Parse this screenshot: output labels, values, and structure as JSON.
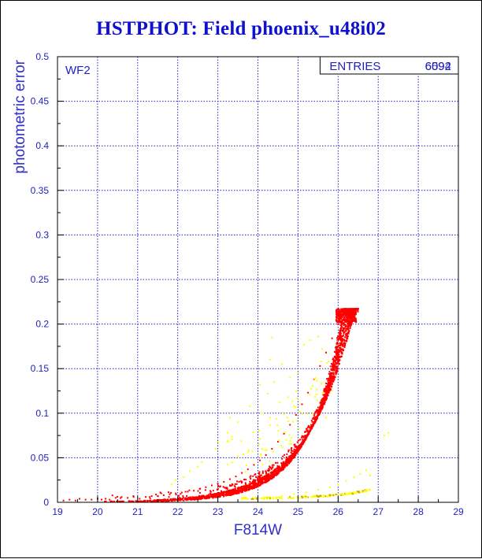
{
  "title": "HSTPHOT: Field phoenix_u48i02",
  "chart_data": {
    "type": "scatter",
    "title": "HSTPHOT: Field phoenix_u48i02",
    "xlabel": "F814W",
    "ylabel": "photometric error",
    "xlim": [
      19,
      29
    ],
    "ylim": [
      0,
      0.5
    ],
    "xticks": [
      "19",
      "20",
      "21",
      "22",
      "23",
      "24",
      "25",
      "26",
      "27",
      "28",
      "29"
    ],
    "yticks": [
      "0",
      "0.05",
      "0.1",
      "0.15",
      "0.2",
      "0.25",
      "0.3",
      "0.35",
      "0.4",
      "0.45",
      "0.5"
    ],
    "grid": true,
    "panel_label": "WF2",
    "stats_box": {
      "label": "ENTRIES",
      "values": [
        "6092",
        "6594"
      ]
    },
    "colors": {
      "frame": "#000000",
      "grid": "#2020c8",
      "text": "#2020c0",
      "title": "#1010d0",
      "main_points": "#ff0000",
      "secondary_points": "#ffff00",
      "secondary_points_dark": "#d0a000"
    },
    "series": [
      {
        "marker_color": "#ff0000",
        "envelope": {
          "description_units": "upper edge y = a*exp((x-x0)/s)",
          "x_start": 19.2,
          "x_end": 26.5,
          "upper_a": 0.0195,
          "upper_x0": 23.7,
          "upper_s": 1.13,
          "lower_a": 0.0125,
          "lower_x0": 23.7,
          "lower_s": 0.86,
          "max_error": 0.217
        },
        "points": [
          [
            19.15,
            0.002
          ],
          [
            19.3,
            0.003
          ],
          [
            19.45,
            0.002
          ],
          [
            19.55,
            0.004
          ],
          [
            19.7,
            0.003
          ],
          [
            19.85,
            0.003
          ],
          [
            20.0,
            0.004
          ],
          [
            20.1,
            0.003
          ],
          [
            20.2,
            0.004
          ],
          [
            20.3,
            0.003
          ],
          [
            20.45,
            0.005
          ],
          [
            20.6,
            0.006
          ],
          [
            20.75,
            0.005
          ],
          [
            20.9,
            0.006
          ],
          [
            21.05,
            0.004
          ],
          [
            21.2,
            0.006
          ],
          [
            21.35,
            0.007
          ],
          [
            21.5,
            0.007
          ],
          [
            21.65,
            0.008
          ],
          [
            21.8,
            0.009
          ],
          [
            21.95,
            0.01
          ],
          [
            22.1,
            0.011
          ],
          [
            22.25,
            0.012
          ],
          [
            22.4,
            0.013
          ],
          [
            22.55,
            0.015
          ],
          [
            22.7,
            0.017
          ],
          [
            22.85,
            0.019
          ],
          [
            23.0,
            0.021
          ],
          [
            23.15,
            0.023
          ],
          [
            23.3,
            0.026
          ],
          [
            23.45,
            0.029
          ],
          [
            23.6,
            0.033
          ],
          [
            23.75,
            0.037
          ],
          [
            23.9,
            0.042
          ],
          [
            24.05,
            0.047
          ],
          [
            24.2,
            0.053
          ],
          [
            24.35,
            0.06
          ],
          [
            24.5,
            0.068
          ],
          [
            24.65,
            0.077
          ],
          [
            24.8,
            0.087
          ],
          [
            24.95,
            0.098
          ],
          [
            25.1,
            0.11
          ],
          [
            25.25,
            0.123
          ],
          [
            25.4,
            0.138
          ],
          [
            25.55,
            0.153
          ],
          [
            25.7,
            0.168
          ],
          [
            25.85,
            0.184
          ],
          [
            26.0,
            0.2
          ],
          [
            26.15,
            0.212
          ],
          [
            26.3,
            0.217
          ]
        ]
      },
      {
        "marker_color": "#ffff00",
        "points": [
          [
            24.35,
            0.185
          ],
          [
            25.15,
            0.177
          ],
          [
            25.3,
            0.182
          ],
          [
            25.5,
            0.186
          ],
          [
            25.6,
            0.172
          ],
          [
            24.3,
            0.16
          ],
          [
            24.6,
            0.155
          ],
          [
            25.0,
            0.145
          ],
          [
            24.8,
            0.14
          ],
          [
            24.4,
            0.135
          ],
          [
            24.05,
            0.132
          ],
          [
            24.25,
            0.122
          ],
          [
            24.75,
            0.118
          ],
          [
            24.55,
            0.112
          ],
          [
            24.9,
            0.108
          ],
          [
            23.8,
            0.108
          ],
          [
            24.1,
            0.1
          ],
          [
            24.3,
            0.095
          ],
          [
            23.5,
            0.09
          ],
          [
            23.25,
            0.078
          ],
          [
            23.3,
            0.095
          ],
          [
            23.0,
            0.068
          ],
          [
            22.95,
            0.06
          ],
          [
            22.6,
            0.045
          ],
          [
            22.3,
            0.035
          ],
          [
            21.95,
            0.025
          ],
          [
            22.15,
            0.028
          ],
          [
            22.5,
            0.04
          ],
          [
            21.85,
            0.02
          ],
          [
            25.7,
            0.095
          ],
          [
            27.15,
            0.075
          ],
          [
            27.25,
            0.078
          ],
          [
            26.8,
            0.03
          ],
          [
            25.85,
            0.125
          ],
          [
            24.95,
            0.125
          ],
          [
            23.7,
            0.004
          ],
          [
            24.0,
            0.005
          ],
          [
            24.3,
            0.006
          ],
          [
            24.6,
            0.007
          ],
          [
            24.9,
            0.009
          ],
          [
            25.2,
            0.011
          ],
          [
            25.5,
            0.014
          ],
          [
            25.8,
            0.017
          ],
          [
            26.0,
            0.02
          ],
          [
            26.2,
            0.024
          ],
          [
            26.4,
            0.028
          ],
          [
            26.55,
            0.032
          ],
          [
            26.7,
            0.036
          ]
        ]
      }
    ]
  }
}
